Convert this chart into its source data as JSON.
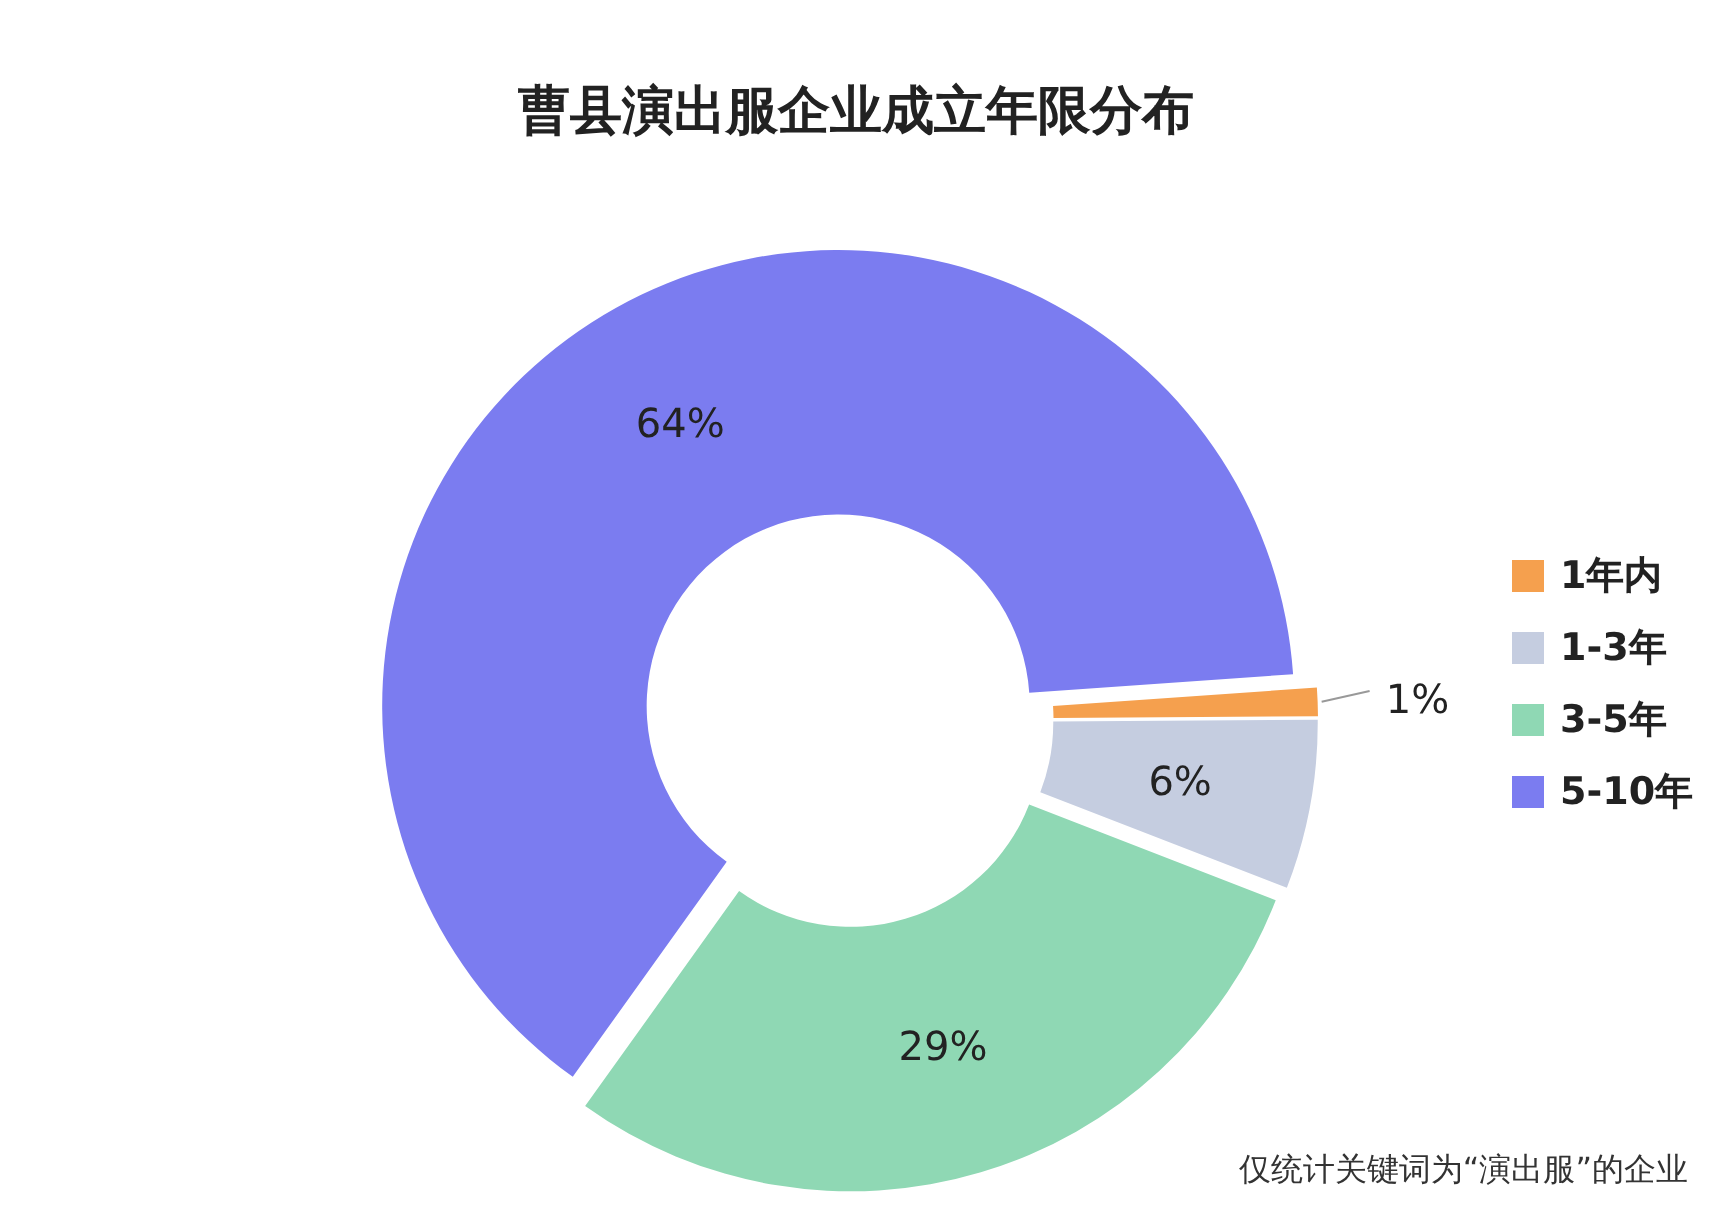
{
  "chart_data": {
    "type": "donut",
    "title": "曹县演出服企业成立年限分布",
    "categories": [
      "1年内",
      "1-3年",
      "3-5年",
      "5-10年"
    ],
    "values": [
      1,
      6,
      29,
      64
    ],
    "colors": [
      "#f5a04e",
      "#c5cde0",
      "#8fd8b4",
      "#7b7cf0"
    ],
    "value_labels": [
      "1%",
      "6%",
      "29%",
      "64%"
    ],
    "legend": "right",
    "annotations": [
      "仅统计关键词为“演出服”的企业"
    ]
  }
}
